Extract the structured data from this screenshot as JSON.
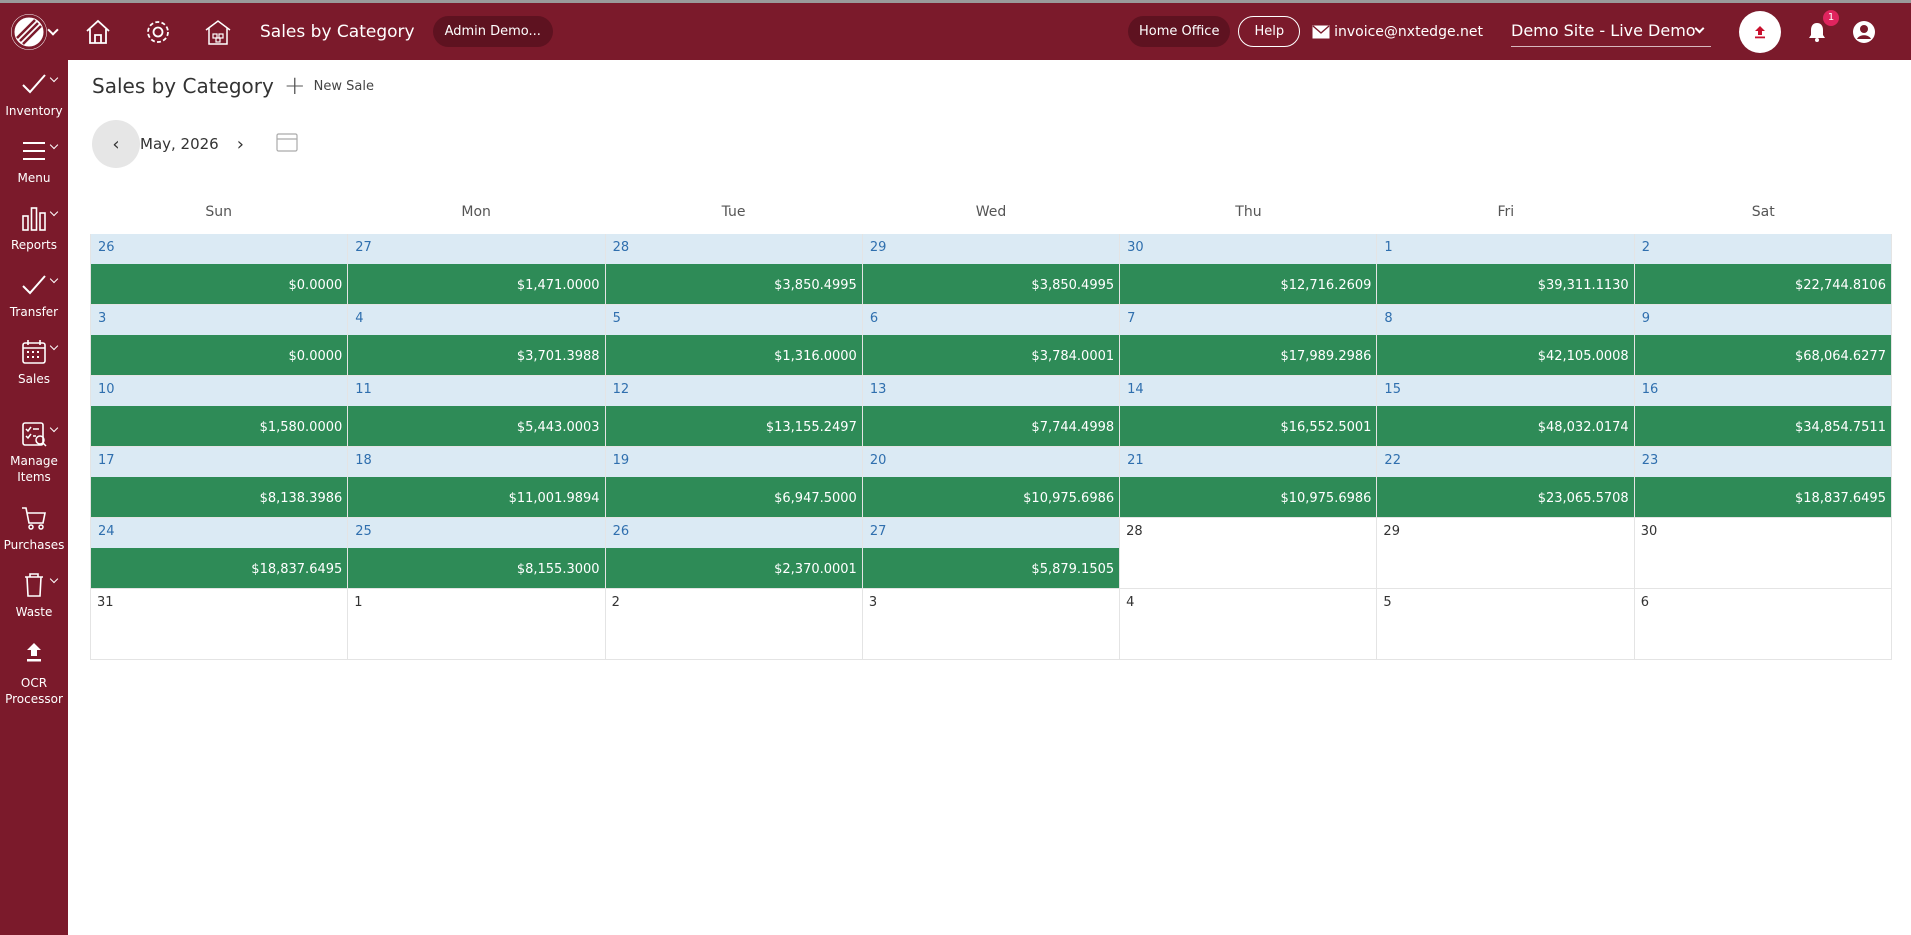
{
  "topbar": {
    "title": "Sales by Category",
    "user_pill": "Admin Demo...",
    "home_office": "Home Office",
    "help": "Help",
    "email": "invoice@nxtedge.net",
    "site": "Demo Site - Live Demo",
    "notif_count": "1"
  },
  "sidebar": {
    "inventory": "Inventory",
    "menu": "Menu",
    "reports": "Reports",
    "transfer": "Transfer",
    "sales": "Sales",
    "manage_items_1": "Manage",
    "manage_items_2": "Items",
    "purchases": "Purchases",
    "waste": "Waste",
    "ocr_1": "OCR",
    "ocr_2": "Processor"
  },
  "page": {
    "title": "Sales by Category",
    "new_sale": "New Sale",
    "month": "May, 2026"
  },
  "calendar": {
    "days": [
      "Sun",
      "Mon",
      "Tue",
      "Wed",
      "Thu",
      "Fri",
      "Sat"
    ],
    "cells": [
      {
        "day": "26",
        "amount": "$0.0000"
      },
      {
        "day": "27",
        "amount": "$1,471.0000"
      },
      {
        "day": "28",
        "amount": "$3,850.4995"
      },
      {
        "day": "29",
        "amount": "$3,850.4995"
      },
      {
        "day": "30",
        "amount": "$12,716.2609"
      },
      {
        "day": "1",
        "amount": "$39,311.1130"
      },
      {
        "day": "2",
        "amount": "$22,744.8106"
      },
      {
        "day": "3",
        "amount": "$0.0000"
      },
      {
        "day": "4",
        "amount": "$3,701.3988"
      },
      {
        "day": "5",
        "amount": "$1,316.0000"
      },
      {
        "day": "6",
        "amount": "$3,784.0001"
      },
      {
        "day": "7",
        "amount": "$17,989.2986"
      },
      {
        "day": "8",
        "amount": "$42,105.0008"
      },
      {
        "day": "9",
        "amount": "$68,064.6277"
      },
      {
        "day": "10",
        "amount": "$1,580.0000"
      },
      {
        "day": "11",
        "amount": "$5,443.0003"
      },
      {
        "day": "12",
        "amount": "$13,155.2497"
      },
      {
        "day": "13",
        "amount": "$7,744.4998"
      },
      {
        "day": "14",
        "amount": "$16,552.5001"
      },
      {
        "day": "15",
        "amount": "$48,032.0174"
      },
      {
        "day": "16",
        "amount": "$34,854.7511"
      },
      {
        "day": "17",
        "amount": "$8,138.3986"
      },
      {
        "day": "18",
        "amount": "$11,001.9894"
      },
      {
        "day": "19",
        "amount": "$6,947.5000"
      },
      {
        "day": "20",
        "amount": "$10,975.6986"
      },
      {
        "day": "21",
        "amount": "$10,975.6986"
      },
      {
        "day": "22",
        "amount": "$23,065.5708"
      },
      {
        "day": "23",
        "amount": "$18,837.6495"
      },
      {
        "day": "24",
        "amount": "$18,837.6495"
      },
      {
        "day": "25",
        "amount": "$8,155.3000"
      },
      {
        "day": "26",
        "amount": "$2,370.0001"
      },
      {
        "day": "27",
        "amount": "$5,879.1505"
      },
      {
        "day": "28",
        "amount": null
      },
      {
        "day": "29",
        "amount": null
      },
      {
        "day": "30",
        "amount": null
      },
      {
        "day": "31",
        "amount": null
      },
      {
        "day": "1",
        "amount": null
      },
      {
        "day": "2",
        "amount": null
      },
      {
        "day": "3",
        "amount": null
      },
      {
        "day": "4",
        "amount": null
      },
      {
        "day": "5",
        "amount": null
      },
      {
        "day": "6",
        "amount": null
      }
    ]
  },
  "colors": {
    "brand": "#7b1a2b",
    "sales_green": "#2e8b57",
    "date_header": "#dbeaf4",
    "date_text": "#2f6fae"
  }
}
